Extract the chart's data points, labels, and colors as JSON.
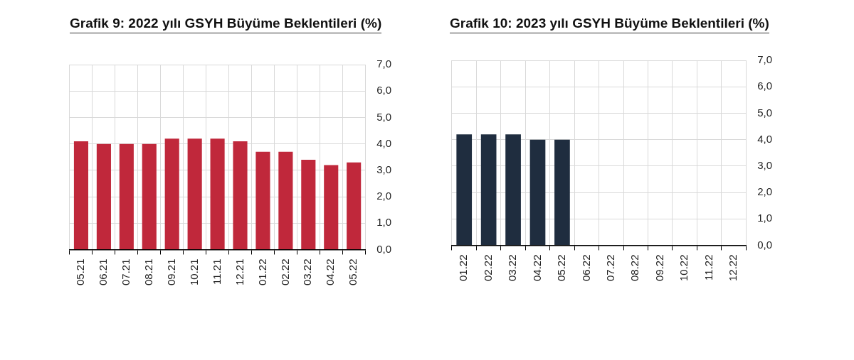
{
  "chart_data": [
    {
      "type": "bar",
      "title": "Grafik 9: 2022 yılı GSYH Büyüme Beklentileri (%)",
      "categories": [
        "05.21",
        "06.21",
        "07.21",
        "08.21",
        "09.21",
        "10.21",
        "11.21",
        "12.21",
        "01.22",
        "02.22",
        "03.22",
        "04.22",
        "05.22"
      ],
      "values": [
        4.1,
        4.0,
        4.0,
        4.0,
        4.2,
        4.2,
        4.2,
        4.1,
        3.7,
        3.7,
        3.4,
        3.2,
        3.3
      ],
      "color": "#c0283b",
      "ylim": [
        0,
        7
      ],
      "yticks": [
        {
          "value": 0,
          "label": "0,0"
        },
        {
          "value": 1,
          "label": "1,0"
        },
        {
          "value": 2,
          "label": "2,0"
        },
        {
          "value": 3,
          "label": "3,0"
        },
        {
          "value": 4,
          "label": "4,0"
        },
        {
          "value": 5,
          "label": "5,0"
        },
        {
          "value": 6,
          "label": "6,0"
        },
        {
          "value": 7,
          "label": "7,0"
        }
      ],
      "grid": true
    },
    {
      "type": "bar",
      "title": "Grafik 10: 2023 yılı GSYH Büyüme Beklentileri (%)",
      "categories": [
        "01.22",
        "02.22",
        "03.22",
        "04.22",
        "05.22",
        "06.22",
        "07.22",
        "08.22",
        "09.22",
        "10.22",
        "11.22",
        "12.22"
      ],
      "values": [
        4.2,
        4.2,
        4.2,
        4.0,
        4.0,
        null,
        null,
        null,
        null,
        null,
        null,
        null
      ],
      "color": "#1f2d3f",
      "ylim": [
        0,
        7
      ],
      "yticks": [
        {
          "value": 0,
          "label": "0,0"
        },
        {
          "value": 1,
          "label": "1,0"
        },
        {
          "value": 2,
          "label": "2,0"
        },
        {
          "value": 3,
          "label": "3,0"
        },
        {
          "value": 4,
          "label": "4,0"
        },
        {
          "value": 5,
          "label": "5,0"
        },
        {
          "value": 6,
          "label": "6,0"
        },
        {
          "value": 7,
          "label": "7,0"
        }
      ],
      "grid": true
    }
  ]
}
